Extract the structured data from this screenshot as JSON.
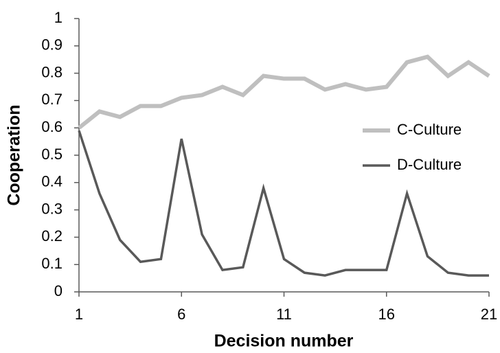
{
  "chart_data": {
    "type": "line",
    "x_label": "Decision number",
    "y_label": "Cooperation",
    "x": [
      1,
      2,
      3,
      4,
      5,
      6,
      7,
      8,
      9,
      10,
      11,
      12,
      13,
      14,
      15,
      16,
      17,
      18,
      19,
      20,
      21
    ],
    "xlim": [
      1,
      21
    ],
    "xticks": [
      1,
      6,
      11,
      16,
      21
    ],
    "ylim": [
      0,
      1
    ],
    "yticks": [
      0,
      0.1,
      0.2,
      0.3,
      0.4,
      0.5,
      0.6,
      0.7,
      0.8,
      0.9,
      1
    ],
    "grid": false,
    "legend": "right",
    "series": [
      {
        "name": "C-Culture",
        "color": "#bfbfbf",
        "values": [
          0.6,
          0.66,
          0.64,
          0.68,
          0.68,
          0.71,
          0.72,
          0.75,
          0.72,
          0.79,
          0.78,
          0.78,
          0.74,
          0.76,
          0.74,
          0.75,
          0.84,
          0.86,
          0.79,
          0.84,
          0.79
        ]
      },
      {
        "name": "D-Culture",
        "color": "#595959",
        "values": [
          0.59,
          0.36,
          0.19,
          0.11,
          0.12,
          0.56,
          0.21,
          0.08,
          0.09,
          0.38,
          0.12,
          0.07,
          0.06,
          0.08,
          0.08,
          0.08,
          0.36,
          0.13,
          0.07,
          0.06,
          0.06
        ]
      }
    ]
  }
}
